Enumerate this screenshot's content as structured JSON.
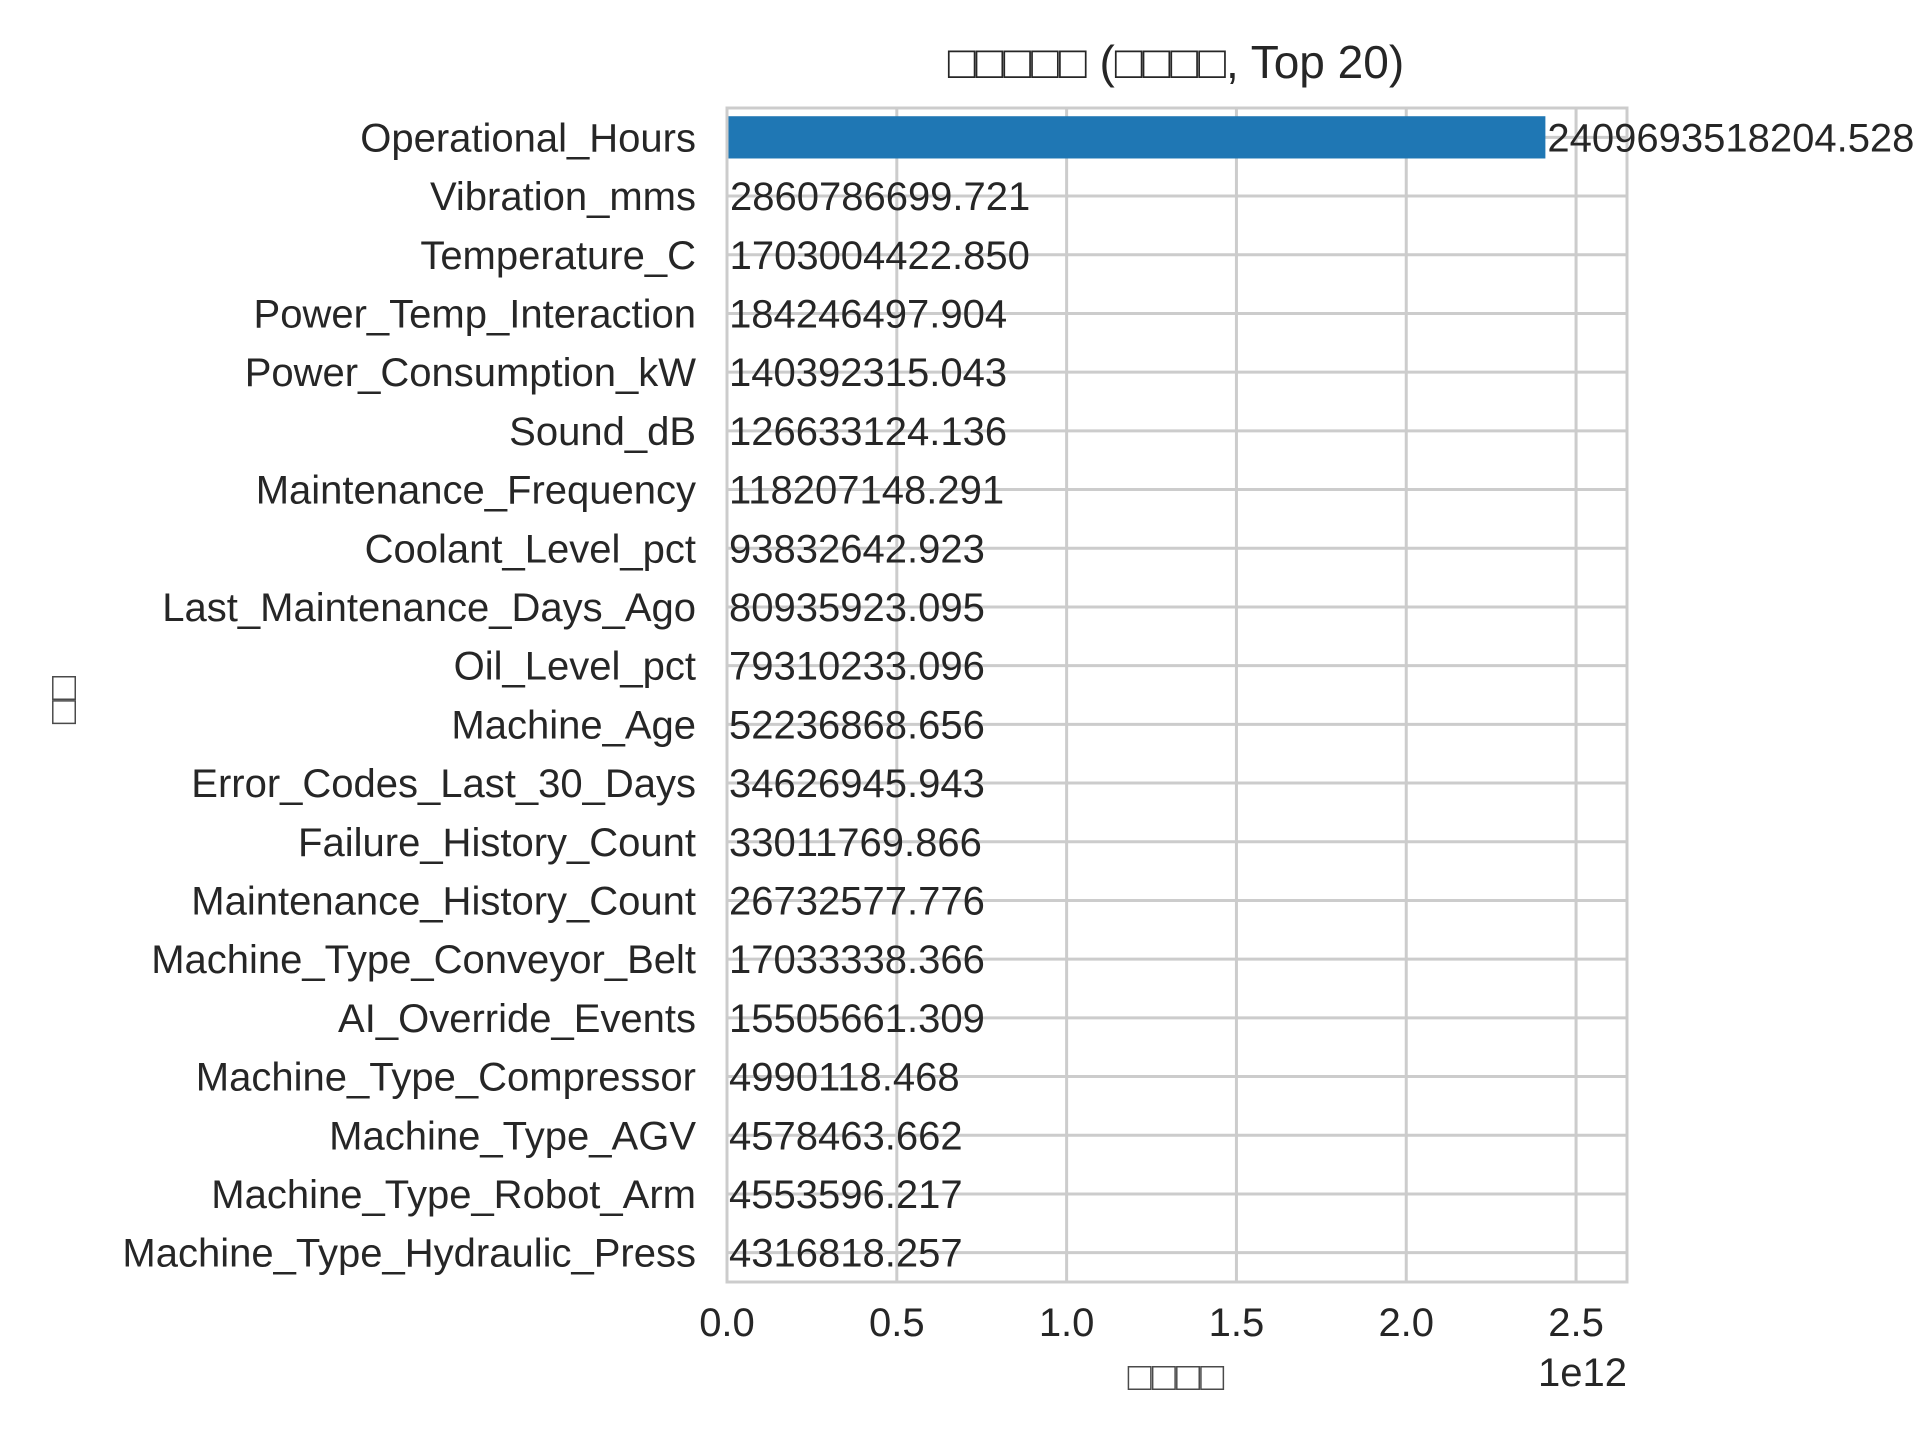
{
  "chart_data": {
    "type": "bar",
    "orientation": "horizontal",
    "title": "□□□□□ (□□□□, Top 20)",
    "xlabel": "□□□□",
    "ylabel": "□□",
    "x_offset_text": "1e12",
    "xlim": [
      0,
      2650000000000.0
    ],
    "xticks": [
      0,
      500000000000.0,
      1000000000000.0,
      1500000000000.0,
      2000000000000.0,
      2500000000000.0
    ],
    "xtick_labels": [
      "0.0",
      "0.5",
      "1.0",
      "1.5",
      "2.0",
      "2.5"
    ],
    "grid": true,
    "bar_color": "#1f77b4",
    "categories": [
      "Operational_Hours",
      "Vibration_mms",
      "Temperature_C",
      "Power_Temp_Interaction",
      "Power_Consumption_kW",
      "Sound_dB",
      "Maintenance_Frequency",
      "Coolant_Level_pct",
      "Last_Maintenance_Days_Ago",
      "Oil_Level_pct",
      "Machine_Age",
      "Error_Codes_Last_30_Days",
      "Failure_History_Count",
      "Maintenance_History_Count",
      "Machine_Type_Conveyor_Belt",
      "AI_Override_Events",
      "Machine_Type_Compressor",
      "Machine_Type_AGV",
      "Machine_Type_Robot_Arm",
      "Machine_Type_Hydraulic_Press"
    ],
    "values": [
      2409693518204.528,
      2860786699.721,
      1703004422.85,
      184246497.904,
      140392315.043,
      126633124.136,
      118207148.291,
      93832642.923,
      80935923.095,
      79310233.096,
      52236868.656,
      34626945.943,
      33011769.866,
      26732577.776,
      17033338.366,
      15505661.309,
      4990118.468,
      4578463.662,
      4553596.217,
      4316818.257
    ],
    "value_labels": [
      "2409693518204.528",
      "2860786699.721",
      "1703004422.850",
      "184246497.904",
      "140392315.043",
      "126633124.136",
      "118207148.291",
      "93832642.923",
      "80935923.095",
      "79310233.096",
      "52236868.656",
      "34626945.943",
      "33011769.866",
      "26732577.776",
      "17033338.366",
      "15505661.309",
      "4990118.468",
      "4578463.662",
      "4553596.217",
      "4316818.257"
    ]
  }
}
